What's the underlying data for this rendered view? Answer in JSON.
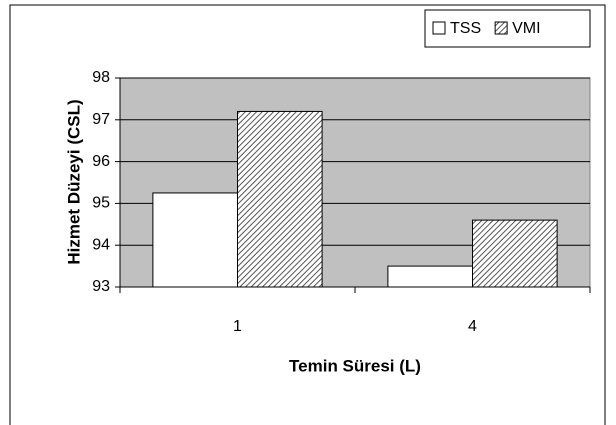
{
  "chart_data": {
    "type": "bar",
    "xlabel": "Temin Süresi (L)",
    "ylabel": "Hizmet Düzeyi (CSL)",
    "categories": [
      "1",
      "4"
    ],
    "series": [
      {
        "name": "TSS",
        "color": "#ffffff",
        "pattern": "solid",
        "values": [
          95.25,
          93.5
        ]
      },
      {
        "name": "VMI",
        "color": "#555555",
        "pattern": "hatch",
        "values": [
          97.2,
          94.6
        ]
      }
    ],
    "ylim": [
      93,
      98
    ],
    "yticks": [
      93,
      94,
      95,
      96,
      97,
      98
    ],
    "grid": true,
    "plot_background": "#c0c0c0",
    "legend": "top-right"
  }
}
